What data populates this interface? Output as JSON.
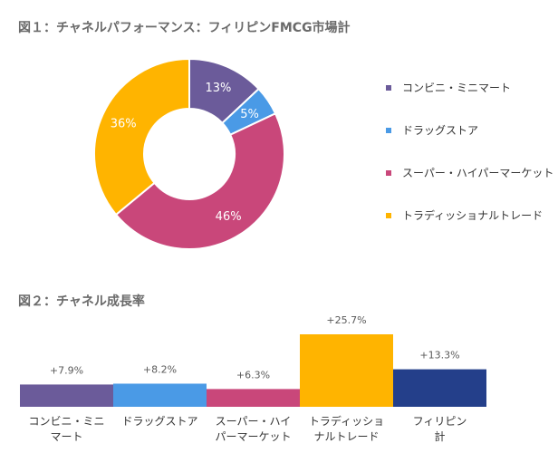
{
  "figure1": {
    "title": "図１：チャネルパフォーマンス：フィリピンFMCG市場計",
    "chart_data": {
      "type": "pie",
      "categories": [
        "コンビニ・ミニマート",
        "ドラッグストア",
        "スーパー・ハイパーマーケット",
        "トラディッショナルトレード"
      ],
      "values": [
        13,
        5,
        46,
        36
      ],
      "labels": [
        "13%",
        "5%",
        "46%",
        "36%"
      ],
      "colors": [
        "#6b5b9a",
        "#4a9ae6",
        "#c9477a",
        "#ffb400"
      ],
      "legend_position": "right"
    }
  },
  "figure2": {
    "title": "図２：チャネル成長率",
    "chart_data": {
      "type": "bar",
      "categories": [
        "コンビニ・ミニマート",
        "ドラッグストア",
        "スーパー・ハイパーマーケット",
        "トラディッショナルトレード",
        "フィリピン計"
      ],
      "category_lines": [
        [
          "コンビニ・ミニ",
          "マート"
        ],
        [
          "ドラッグストア"
        ],
        [
          "スーパー・ハイ",
          "パーマーケット"
        ],
        [
          "トラディッショ",
          "ナルトレード"
        ],
        [
          "フィリピン",
          "計"
        ]
      ],
      "values": [
        7.9,
        8.2,
        6.3,
        25.7,
        13.3
      ],
      "labels": [
        "+7.9%",
        "+8.2%",
        "+6.3%",
        "+25.7%",
        "+13.3%"
      ],
      "colors": [
        "#6b5b9a",
        "#4a9ae6",
        "#c9477a",
        "#ffb400",
        "#243f8a"
      ]
    }
  }
}
